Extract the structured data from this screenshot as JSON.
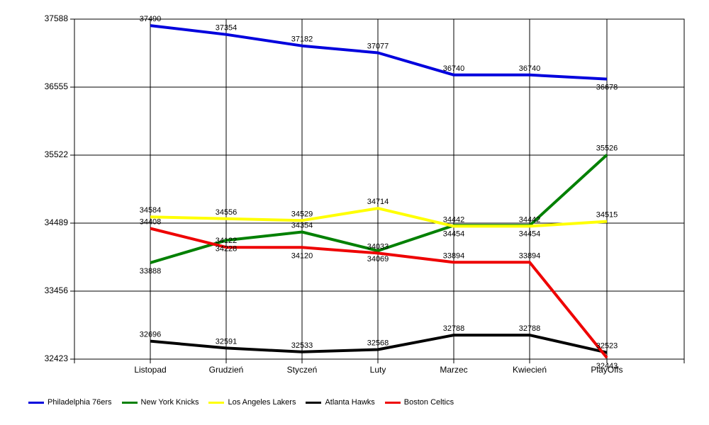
{
  "chart_data": {
    "type": "line",
    "categories": [
      "Listopad",
      "Grudzień",
      "Styczeń",
      "Luty",
      "Marzec",
      "Kwiecień",
      "PlayOffs"
    ],
    "ylim": [
      32423,
      37588
    ],
    "yticks": [
      32423,
      33456,
      34489,
      35522,
      36555,
      37588
    ],
    "grid": true,
    "legend_position": "bottom-left",
    "series": [
      {
        "name": "Philadelphia 76ers",
        "color": "#0000dd",
        "values": [
          37490,
          37354,
          37182,
          37077,
          36740,
          36740,
          36678
        ]
      },
      {
        "name": "New York Knicks",
        "color": "#008000",
        "values": [
          33888,
          34228,
          34354,
          34069,
          34454,
          34454,
          35526
        ]
      },
      {
        "name": "Los Angeles Lakers",
        "color": "#ffff00",
        "values": [
          34584,
          34556,
          34529,
          34714,
          34442,
          34442,
          34515
        ]
      },
      {
        "name": "Atlanta Hawks",
        "color": "#000000",
        "values": [
          32696,
          32591,
          32533,
          32568,
          32788,
          32788,
          32523
        ]
      },
      {
        "name": "Boston Celtics",
        "color": "#ee0000",
        "values": [
          34408,
          34122,
          34120,
          34033,
          33894,
          33894,
          32443
        ]
      }
    ]
  }
}
